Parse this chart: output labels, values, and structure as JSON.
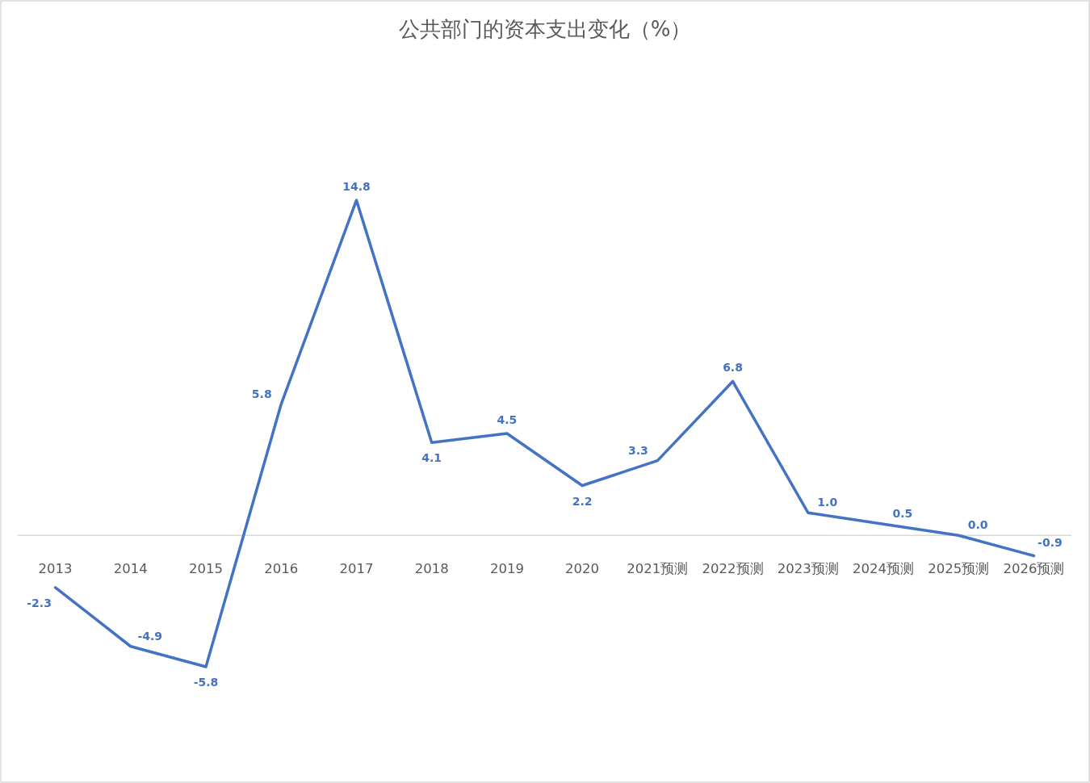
{
  "chart_data": {
    "type": "line",
    "title": "公共部门的资本支出变化（%）",
    "categories": [
      "2013",
      "2014",
      "2015",
      "2016",
      "2017",
      "2018",
      "2019",
      "2020",
      "2021预测",
      "2022预测",
      "2023预测",
      "2024预测",
      "2025预测",
      "2026预测"
    ],
    "series": [
      {
        "color": "#4472c4",
        "values": [
          -2.3,
          -4.9,
          -5.8,
          5.8,
          14.8,
          4.1,
          4.5,
          2.2,
          3.3,
          6.8,
          1.0,
          0.5,
          0.0,
          -0.9
        ],
        "value_labels": [
          "-2.3",
          "-4.9",
          "-5.8",
          "5.8",
          "14.8",
          "4.1",
          "4.5",
          "2.2",
          "3.3",
          "6.8",
          "1.0",
          "0.5",
          "0.0",
          "-0.9"
        ]
      }
    ],
    "grid": false
  }
}
